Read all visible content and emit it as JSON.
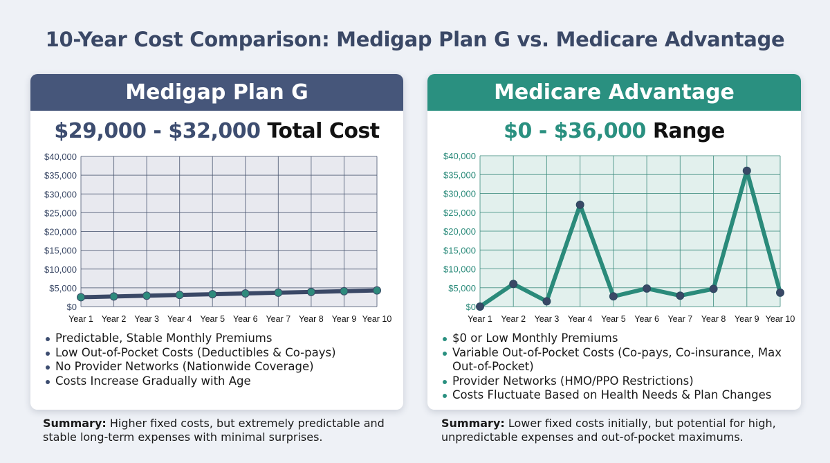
{
  "title": "10-Year Cost Comparison: Medigap Plan G vs. Medicare Advantage",
  "colors": {
    "medigap": "#46567a",
    "advantage": "#2a9080",
    "point": "#2e8a7c",
    "point_dark": "#3a4866"
  },
  "left": {
    "header": "Medigap Plan G",
    "subtitle_accent": "$29,000 - $32,000",
    "subtitle_rest": "Total Cost",
    "bullets": [
      "Predictable, Stable Monthly Premiums",
      "Low Out-of-Pocket Costs (Deductibles & Co-pays)",
      "No Provider Networks (Nationwide Coverage)",
      "Costs Increase Gradually with Age"
    ],
    "summary_label": "Summary:",
    "summary_text": "Higher fixed costs, but extremely predictable and stable long-term expenses with minimal surprises."
  },
  "right": {
    "header": "Medicare Advantage",
    "subtitle_accent": "$0 - $36,000",
    "subtitle_rest": "Range",
    "bullets": [
      "$0 or Low Monthly Premiums",
      "Variable Out-of-Pocket Costs (Co-pays, Co-insurance, Max Out-of-Pocket)",
      "Provider Networks (HMO/PPO Restrictions)",
      "Costs Fluctuate Based on Health Needs & Plan Changes"
    ],
    "summary_label": "Summary:",
    "summary_text": "Lower fixed costs initially, but potential for high, unpredictable expenses and out-of-pocket maximums."
  },
  "chart_data": [
    {
      "type": "line",
      "categories": [
        "Year 1",
        "Year 2",
        "Year 3",
        "Year 4",
        "Year 5",
        "Year 6",
        "Year 7",
        "Year 8",
        "Year 9",
        "Year 10"
      ],
      "values": [
        2500,
        2700,
        2900,
        3100,
        3300,
        3500,
        3700,
        3900,
        4100,
        4300
      ],
      "ylim": [
        0,
        40000
      ],
      "yticks": [
        "$0",
        "$5,000",
        "$10,000",
        "$15,000",
        "$20,000",
        "$25,000",
        "$30,000",
        "$35,000",
        "$40,000"
      ],
      "grid": true,
      "line_color": "#3a4866",
      "plot_bg": "#e8e9ef",
      "grid_color": "#4a5670",
      "tick_color": "#3a4866"
    },
    {
      "type": "line",
      "categories": [
        "Year 1",
        "Year 2",
        "Year 3",
        "Year 4",
        "Year 5",
        "Year 6",
        "Year 7",
        "Year 8",
        "Year 9",
        "Year 10"
      ],
      "values": [
        0,
        6000,
        1400,
        27000,
        2700,
        4800,
        2900,
        4700,
        36000,
        3700
      ],
      "ylim": [
        0,
        40000
      ],
      "yticks": [
        "$0",
        "$5,000",
        "$10,000",
        "$15,000",
        "$20,000",
        "$25,000",
        "$30,000",
        "$35,000",
        "$40,000"
      ],
      "grid": true,
      "line_color": "#2a8a7a",
      "plot_bg": "#e2f0ed",
      "grid_color": "#3a8a7c",
      "tick_color": "#2a8a7a"
    }
  ]
}
